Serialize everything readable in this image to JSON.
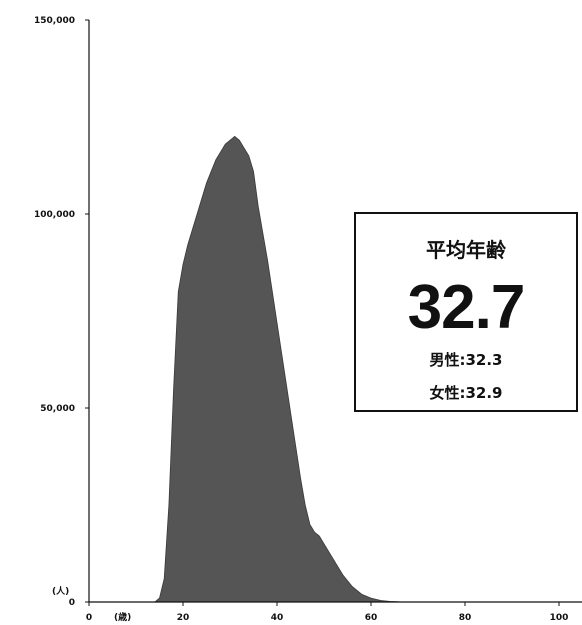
{
  "chart_data": {
    "type": "area",
    "x": [
      0,
      5,
      10,
      12,
      14,
      15,
      16,
      17,
      18,
      19,
      20,
      21,
      22,
      23,
      24,
      25,
      26,
      27,
      28,
      29,
      30,
      31,
      32,
      33,
      34,
      35,
      36,
      37,
      38,
      39,
      40,
      41,
      42,
      43,
      44,
      45,
      46,
      47,
      48,
      49,
      50,
      52,
      54,
      56,
      58,
      60,
      62,
      64,
      66,
      70,
      80,
      90,
      100,
      105
    ],
    "values": [
      0,
      0,
      0,
      0,
      0,
      1000,
      6000,
      25000,
      55000,
      80000,
      87000,
      92000,
      96000,
      100000,
      104000,
      108000,
      111000,
      114000,
      116000,
      118000,
      119000,
      120000,
      119000,
      117000,
      115000,
      111000,
      102000,
      95000,
      88000,
      80000,
      72000,
      64000,
      56000,
      48000,
      40000,
      32000,
      25000,
      20000,
      18000,
      17000,
      15000,
      11000,
      7000,
      4000,
      2000,
      1000,
      400,
      150,
      50,
      0,
      0,
      0,
      0,
      0
    ],
    "ylim": [
      0,
      150000
    ],
    "xlim": [
      0,
      105
    ],
    "y_ticks": [
      "150,000",
      "100,000",
      "50,000",
      "0"
    ],
    "y_tick_values": [
      150000,
      100000,
      50000,
      0
    ],
    "x_ticks": [
      "0",
      "20",
      "40",
      "60",
      "80",
      "100"
    ],
    "x_tick_values": [
      0,
      20,
      40,
      60,
      80,
      100
    ],
    "y_unit": "(人)",
    "x_unit": "(歳)",
    "fill_color": "#555555",
    "grid": false
  },
  "summary_box": {
    "title": "平均年齢",
    "value": "32.7",
    "male": "男性:32.3",
    "female": "女性:32.9"
  }
}
